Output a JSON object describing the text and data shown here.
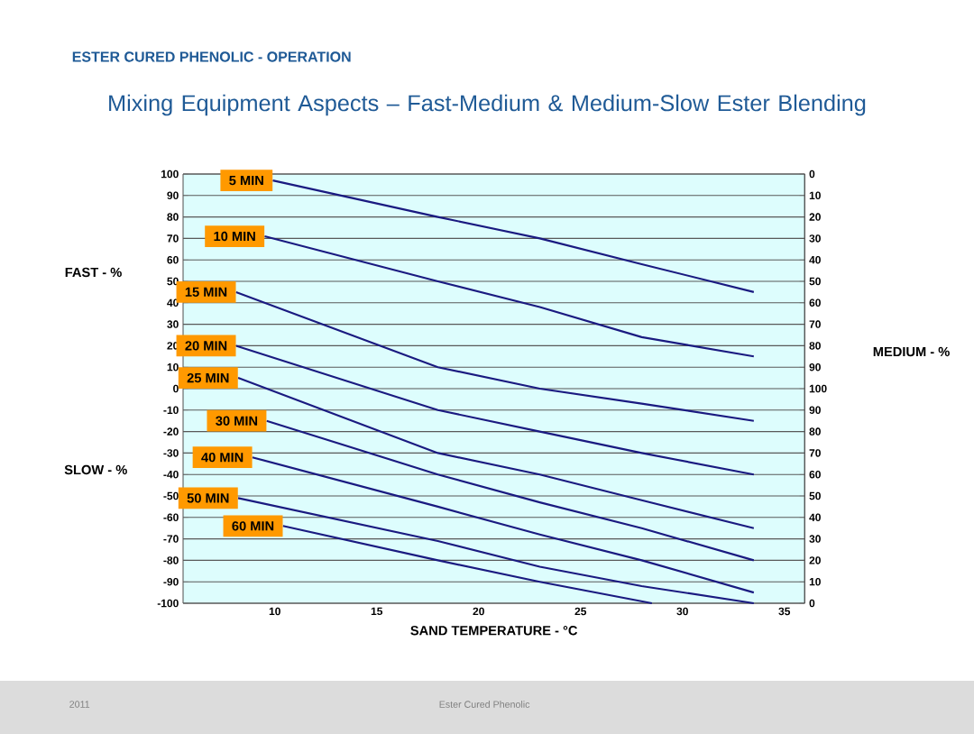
{
  "chart_data": {
    "type": "line",
    "subtitle": "ESTER CURED PHENOLIC - OPERATION",
    "title": "Mixing Equipment Aspects – Fast-Medium & Medium-Slow Ester Blending",
    "xlabel": "SAND TEMPERATURE - °C",
    "ylabel": "FAST - %",
    "y2label": "MEDIUM - %",
    "annotations": [
      "SLOW - %",
      "2011",
      "Ester Cured Phenolic"
    ],
    "grid": "y",
    "xlim": [
      5.5,
      36
    ],
    "xticks": [
      10,
      15,
      20,
      25,
      30,
      35
    ],
    "ylim": [
      -100,
      100
    ],
    "yticks": [
      -100,
      -90,
      -80,
      -70,
      -60,
      -50,
      -40,
      -30,
      -20,
      -10,
      0,
      10,
      20,
      30,
      40,
      50,
      60,
      70,
      80,
      90,
      100
    ],
    "y2lim": [
      0,
      200
    ],
    "y2ticks": [
      0,
      10,
      20,
      30,
      40,
      50,
      60,
      70,
      80,
      90
    ],
    "y3lim": [
      200,
      0
    ],
    "y3ticks": [
      0,
      10,
      20,
      30,
      40,
      50,
      60,
      70,
      80,
      90,
      100
    ],
    "series": [
      {
        "name": "5 MIN",
        "color": "#1a1a80",
        "x": [
          9.9,
          18,
          23,
          28,
          33.5
        ],
        "values": [
          97,
          80,
          70,
          58,
          45
        ]
      },
      {
        "name": "10 MIN",
        "color": "#1a1a80",
        "x": [
          9.5,
          18,
          23,
          28,
          33.5
        ],
        "values": [
          71,
          50,
          38,
          24,
          15
        ]
      },
      {
        "name": "15 MIN",
        "color": "#1a1a80",
        "x": [
          8.1,
          18,
          23,
          28,
          33.5
        ],
        "values": [
          45,
          10,
          0,
          -7,
          -15
        ]
      },
      {
        "name": "20 MIN",
        "color": "#1a1a80",
        "x": [
          8.1,
          18,
          23,
          28,
          33.5
        ],
        "values": [
          20,
          -10,
          -20,
          -30,
          -40
        ]
      },
      {
        "name": "25 MIN",
        "color": "#1a1a80",
        "x": [
          8.2,
          18,
          23,
          28,
          33.5
        ],
        "values": [
          5,
          -30,
          -40,
          -52,
          -65
        ]
      },
      {
        "name": "30 MIN",
        "color": "#1a1a80",
        "x": [
          9.6,
          18,
          23,
          28,
          33.5
        ],
        "values": [
          -15,
          -40,
          -53,
          -65,
          -80
        ]
      },
      {
        "name": "40 MIN",
        "color": "#1a1a80",
        "x": [
          8.9,
          18,
          23,
          28,
          33.5
        ],
        "values": [
          -32,
          -55,
          -68,
          -80,
          -95
        ]
      },
      {
        "name": "50 MIN",
        "color": "#1a1a80",
        "x": [
          8.2,
          18,
          23,
          28,
          33.5
        ],
        "values": [
          -51,
          -71,
          -83,
          -92,
          -100
        ]
      },
      {
        "name": "60 MIN",
        "color": "#1a1a80",
        "x": [
          10.4,
          18,
          23,
          28.5
        ],
        "values": [
          -64,
          -80,
          -90,
          -100
        ]
      }
    ]
  }
}
